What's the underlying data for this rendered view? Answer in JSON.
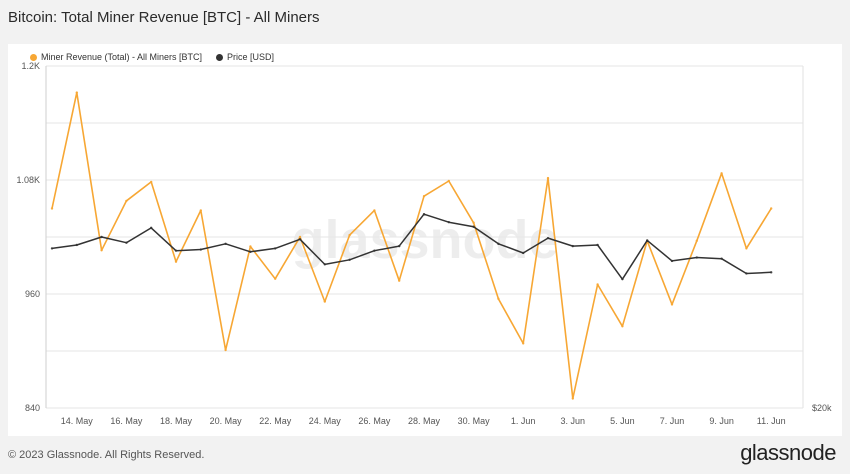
{
  "title": "Bitcoin: Total Miner Revenue [BTC] - All Miners",
  "footer": {
    "copyright": "© 2023 Glassnode. All Rights Reserved.",
    "brand": "glassnode"
  },
  "watermark": "glassnode",
  "colors": {
    "revenue": "#f7a734",
    "price": "#333333",
    "grid": "#e6e6e6",
    "background": "#f2f2f2",
    "panel": "#ffffff"
  },
  "chart_data": {
    "type": "line",
    "x": [
      "13. May",
      "14. May",
      "15. May",
      "16. May",
      "17. May",
      "18. May",
      "19. May",
      "20. May",
      "21. May",
      "22. May",
      "23. May",
      "24. May",
      "25. May",
      "26. May",
      "27. May",
      "28. May",
      "29. May",
      "30. May",
      "31. May",
      "1. Jun",
      "2. Jun",
      "3. Jun",
      "4. Jun",
      "5. Jun",
      "6. Jun",
      "7. Jun",
      "8. Jun",
      "9. Jun",
      "10. Jun",
      "11. Jun",
      "12. Jun"
    ],
    "xtick_labels": [
      "14. May",
      "16. May",
      "18. May",
      "20. May",
      "22. May",
      "24. May",
      "26. May",
      "28. May",
      "30. May",
      "1. Jun",
      "3. Jun",
      "5. Jun",
      "7. Jun",
      "9. Jun",
      "11. Jun"
    ],
    "series": [
      {
        "name": "Miner Revenue (Total) - All Miners [BTC]",
        "axis": "left",
        "values": [
          1050,
          1172,
          1006,
          1058,
          1078,
          994,
          1048,
          901,
          1010,
          976,
          1020,
          952,
          1022,
          1048,
          974,
          1063,
          1079,
          1035,
          955,
          908,
          1082,
          850,
          970,
          926,
          1016,
          949,
          1016,
          1087,
          1008,
          1050,
          null
        ]
      },
      {
        "name": "Price [USD]",
        "axis": "right",
        "values": [
          27000,
          27150,
          27500,
          27250,
          27900,
          26900,
          26950,
          27200,
          26850,
          27000,
          27400,
          26300,
          26500,
          26900,
          27100,
          28500,
          28150,
          27950,
          27200,
          26800,
          27450,
          27100,
          27150,
          25650,
          27350,
          26450,
          26600,
          26550,
          25900,
          25950,
          null
        ]
      }
    ],
    "y_left": {
      "ticks": [
        840,
        960,
        1080,
        1200
      ],
      "tick_labels": [
        "840",
        "960",
        "1.08K",
        "1.2K"
      ],
      "range": [
        840,
        1200
      ]
    },
    "y_right": {
      "ticks": [
        20000
      ],
      "tick_labels": [
        "$20k"
      ],
      "range": [
        20000,
        35000
      ]
    },
    "grid": true,
    "legend_position": "top-left"
  }
}
